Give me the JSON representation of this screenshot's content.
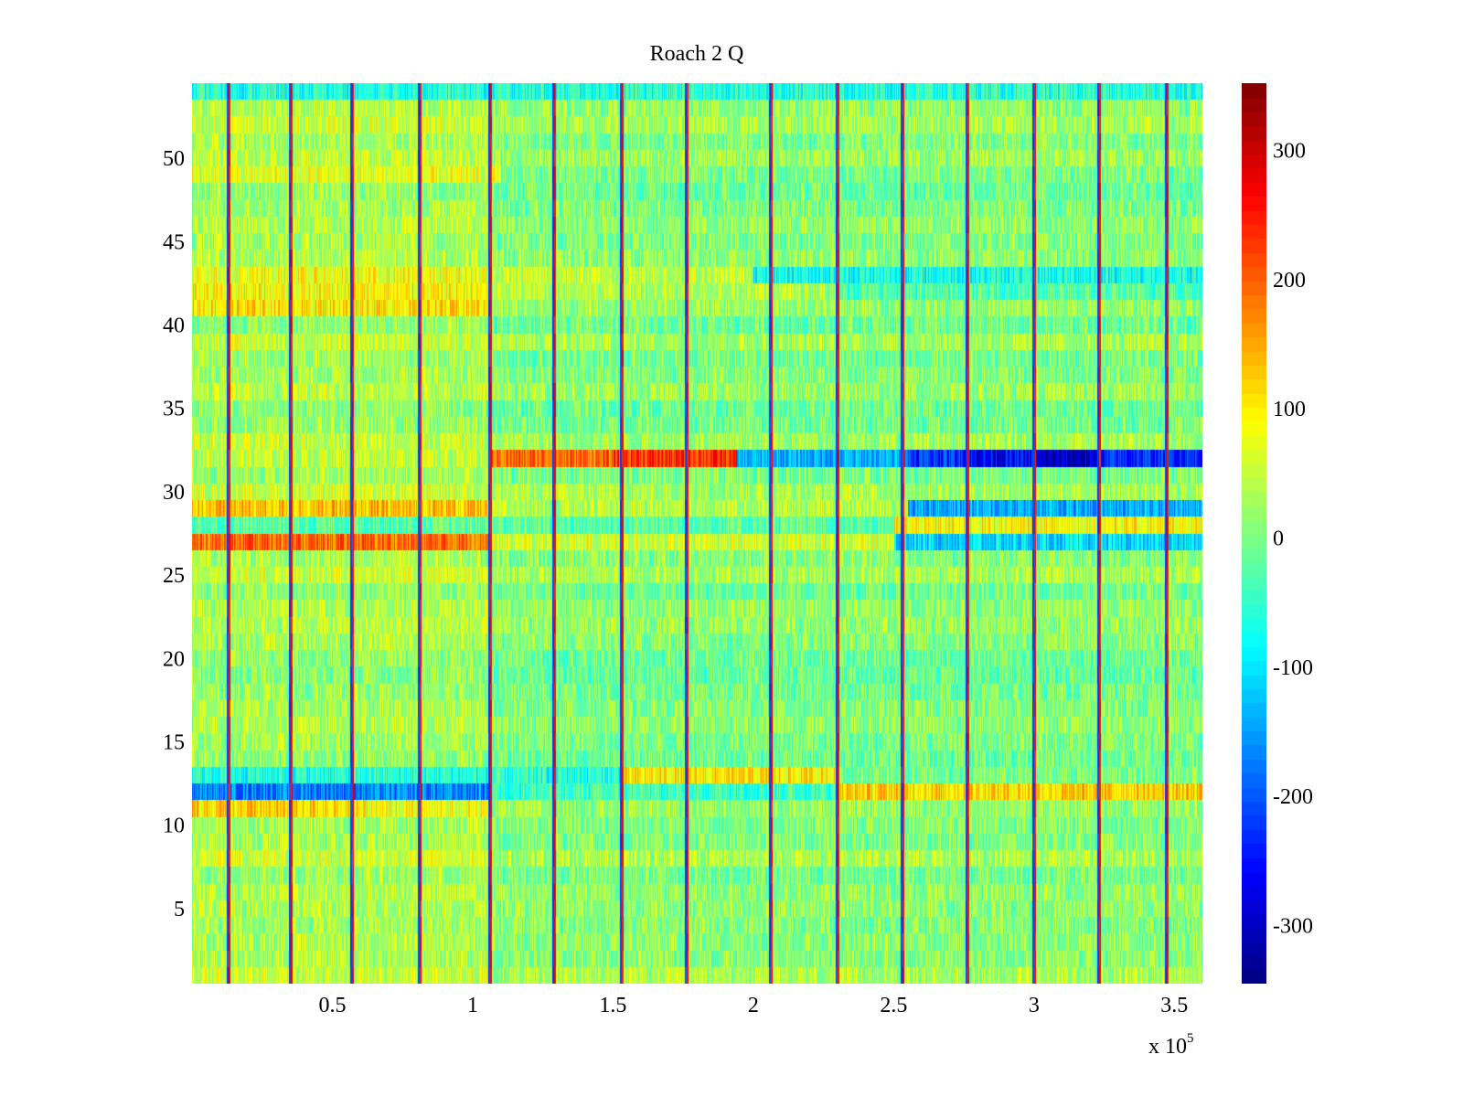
{
  "chart_data": {
    "type": "heatmap",
    "title": "Roach 2 Q",
    "xlabel": "",
    "ylabel": "",
    "x_multiplier_label": "x 10",
    "x_multiplier_exponent": "5",
    "xlim": [
      0,
      3.6
    ],
    "ylim": [
      0.5,
      54.5
    ],
    "x_ticks": [
      {
        "value": 0.5,
        "label": "0.5"
      },
      {
        "value": 1,
        "label": "1"
      },
      {
        "value": 1.5,
        "label": "1.5"
      },
      {
        "value": 2,
        "label": "2"
      },
      {
        "value": 2.5,
        "label": "2.5"
      },
      {
        "value": 3,
        "label": "3"
      },
      {
        "value": 3.5,
        "label": "3.5"
      }
    ],
    "y_ticks": [
      {
        "value": 5,
        "label": "5"
      },
      {
        "value": 10,
        "label": "10"
      },
      {
        "value": 15,
        "label": "15"
      },
      {
        "value": 20,
        "label": "20"
      },
      {
        "value": 25,
        "label": "25"
      },
      {
        "value": 30,
        "label": "30"
      },
      {
        "value": 35,
        "label": "35"
      },
      {
        "value": 40,
        "label": "40"
      },
      {
        "value": 45,
        "label": "45"
      },
      {
        "value": 50,
        "label": "50"
      }
    ],
    "colorbar": {
      "colormap": "jet",
      "range": [
        -345,
        352
      ],
      "ticks": [
        {
          "value": 300,
          "label": "300"
        },
        {
          "value": 200,
          "label": "200"
        },
        {
          "value": 100,
          "label": "100"
        },
        {
          "value": 0,
          "label": "0"
        },
        {
          "value": -100,
          "label": "-100"
        },
        {
          "value": -200,
          "label": "-200"
        },
        {
          "value": -300,
          "label": "-300"
        }
      ]
    },
    "rows": 54,
    "vertical_stripes_x": [
      0.13,
      0.35,
      0.57,
      0.81,
      1.06,
      1.29,
      1.53,
      1.76,
      2.06,
      2.3,
      2.53,
      2.76,
      3.0,
      3.23,
      3.47
    ],
    "row_baseline_values": [
      {
        "row": 27,
        "segments": [
          {
            "x": [
              0,
              1.06
            ],
            "value": 190
          },
          {
            "x": [
              1.06,
              2.5
            ],
            "value": 60
          },
          {
            "x": [
              2.5,
              3.6
            ],
            "value": -110
          }
        ]
      },
      {
        "row": 29,
        "segments": [
          {
            "x": [
              0,
              1.06
            ],
            "value": 130
          },
          {
            "x": [
              1.06,
              2.55
            ],
            "value": 40
          },
          {
            "x": [
              2.55,
              3.6
            ],
            "value": -140
          }
        ]
      },
      {
        "row": 28,
        "segments": [
          {
            "x": [
              0,
              2.5
            ],
            "value": -20
          },
          {
            "x": [
              2.5,
              3.6
            ],
            "value": 90
          }
        ]
      },
      {
        "row": 32,
        "segments": [
          {
            "x": [
              0,
              1.06
            ],
            "value": 50
          },
          {
            "x": [
              1.06,
              1.5
            ],
            "value": 190
          },
          {
            "x": [
              1.5,
              1.94
            ],
            "value": 230
          },
          {
            "x": [
              1.94,
              2.55
            ],
            "value": -140
          },
          {
            "x": [
              2.55,
              2.75
            ],
            "value": -220
          },
          {
            "x": [
              2.75,
              3.0
            ],
            "value": -260
          },
          {
            "x": [
              3.0,
              3.25
            ],
            "value": -300
          },
          {
            "x": [
              3.25,
              3.6
            ],
            "value": -230
          }
        ]
      },
      {
        "row": 12,
        "segments": [
          {
            "x": [
              0,
              1.06
            ],
            "value": -170
          },
          {
            "x": [
              1.06,
              2.3
            ],
            "value": -40
          },
          {
            "x": [
              2.3,
              3.6
            ],
            "value": 120
          }
        ]
      },
      {
        "row": 13,
        "segments": [
          {
            "x": [
              0,
              1.53
            ],
            "value": -60
          },
          {
            "x": [
              1.53,
              2.3
            ],
            "value": 100
          },
          {
            "x": [
              2.3,
              3.6
            ],
            "value": 0
          }
        ]
      },
      {
        "row": 11,
        "segments": [
          {
            "x": [
              0,
              0.6
            ],
            "value": 120
          },
          {
            "x": [
              0.6,
              1.06
            ],
            "value": 80
          },
          {
            "x": [
              1.06,
              3.6
            ],
            "value": 20
          }
        ]
      },
      {
        "row": 41,
        "segments": [
          {
            "x": [
              0,
              1.06
            ],
            "value": 110
          },
          {
            "x": [
              1.06,
              3.6
            ],
            "value": 20
          }
        ]
      },
      {
        "row": 42,
        "segments": [
          {
            "x": [
              0,
              1.06
            ],
            "value": 90
          },
          {
            "x": [
              1.06,
              2.3
            ],
            "value": 40
          },
          {
            "x": [
              2.3,
              3.6
            ],
            "value": -30
          }
        ]
      },
      {
        "row": 43,
        "segments": [
          {
            "x": [
              0,
              1.06
            ],
            "value": 80
          },
          {
            "x": [
              1.06,
              2.0
            ],
            "value": 50
          },
          {
            "x": [
              2.0,
              3.6
            ],
            "value": -70
          }
        ]
      },
      {
        "row": 49,
        "segments": [
          {
            "x": [
              0,
              1.1
            ],
            "value": 70
          },
          {
            "x": [
              1.1,
              3.6
            ],
            "value": 0
          }
        ]
      },
      {
        "row": 54,
        "segments": [
          {
            "x": [
              0,
              3.6
            ],
            "value": -60
          }
        ]
      }
    ]
  }
}
